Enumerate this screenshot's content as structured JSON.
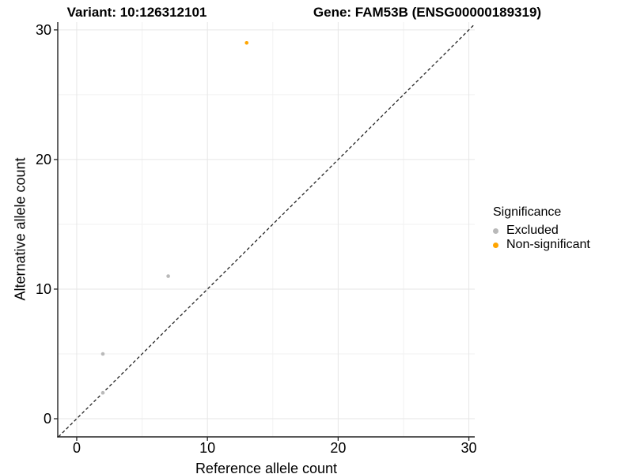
{
  "chart_data": {
    "type": "scatter",
    "titles": {
      "left": "Variant: 10:126312101",
      "right": "Gene: FAM53B (ENSG00000189319)"
    },
    "xlabel": "Reference allele count",
    "ylabel": "Alternative allele count",
    "xticks": [
      "0",
      "10",
      "20",
      "30"
    ],
    "yticks": [
      "0",
      "10",
      "20",
      "30"
    ],
    "xtick_values": [
      0,
      10,
      20,
      30
    ],
    "ytick_values": [
      0,
      10,
      20,
      30
    ],
    "minor_tick_values": [
      5,
      15,
      25
    ],
    "xlim": [
      -1.45,
      30.45
    ],
    "ylim": [
      -1.4,
      30.6
    ],
    "grid": "major+minor",
    "reference_line": {
      "type": "identity",
      "style": "dashed",
      "color": "#222222"
    },
    "legend": {
      "title": "Significance",
      "position": "right"
    },
    "series": [
      {
        "name": "Excluded",
        "color": "#b9b9b9",
        "points": [
          [
            2,
            2
          ],
          [
            2,
            5
          ],
          [
            7,
            11
          ]
        ]
      },
      {
        "name": "Non-significant",
        "color": "#ffa500",
        "points": [
          [
            13,
            29
          ]
        ]
      }
    ],
    "colors": {
      "axis_line": "#222222",
      "tick_label": "#000000",
      "grid_major": "#e6e6e6",
      "grid_minor": "#f2f2f2",
      "background": "#ffffff"
    }
  }
}
